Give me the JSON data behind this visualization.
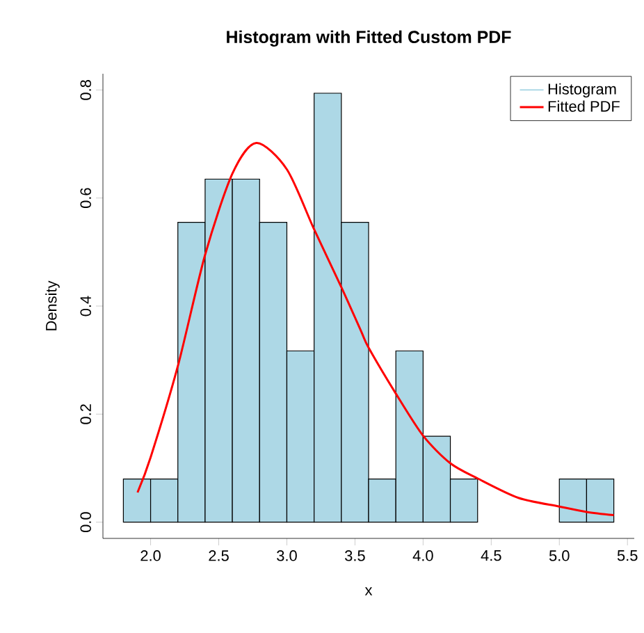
{
  "chart_data": {
    "type": "histogram",
    "title": "Histogram with Fitted Custom PDF",
    "xlabel": "x",
    "ylabel": "Density",
    "bins": [
      1.8,
      2.0,
      2.2,
      2.4,
      2.6,
      2.8,
      3.0,
      3.2,
      3.4,
      3.6,
      3.8,
      4.0,
      4.2,
      4.4,
      4.6,
      4.8,
      5.0,
      5.2,
      5.4
    ],
    "series": [
      {
        "name": "Histogram",
        "color": "#add8e6",
        "values": [
          0.08,
          0.08,
          0.555,
          0.635,
          0.635,
          0.555,
          0.317,
          0.794,
          0.555,
          0.08,
          0.317,
          0.159,
          0.08,
          0,
          0,
          0,
          0.08,
          0.08
        ]
      },
      {
        "type": "line",
        "name": "Fitted PDF",
        "color": "#ff0000",
        "x": [
          1.904,
          2.0,
          2.2,
          2.4,
          2.6,
          2.776,
          3.0,
          3.2,
          3.4,
          3.546,
          3.6,
          3.8,
          4.0,
          4.2,
          4.4,
          4.7,
          5.0,
          5.2,
          5.4
        ],
        "values": [
          0.055,
          0.12,
          0.289,
          0.495,
          0.645,
          0.702,
          0.653,
          0.542,
          0.435,
          0.353,
          0.323,
          0.238,
          0.16,
          0.109,
          0.081,
          0.045,
          0.029,
          0.019,
          0.013
        ]
      }
    ],
    "xlim": [
      1.65,
      5.55
    ],
    "ylim": [
      -0.03,
      0.83
    ],
    "xticks": [
      {
        "value": 2,
        "label": "2.0"
      },
      2.5,
      {
        "value": 3,
        "label": "3.0"
      },
      3.5,
      {
        "value": 4,
        "label": "4.0"
      },
      4.5,
      {
        "value": 5,
        "label": "5.0"
      },
      5.5
    ],
    "yticks": [
      {
        "value": 0,
        "label": "0.0"
      },
      0.2,
      0.4,
      0.6,
      0.8
    ],
    "legend": "top right",
    "grid": false
  }
}
